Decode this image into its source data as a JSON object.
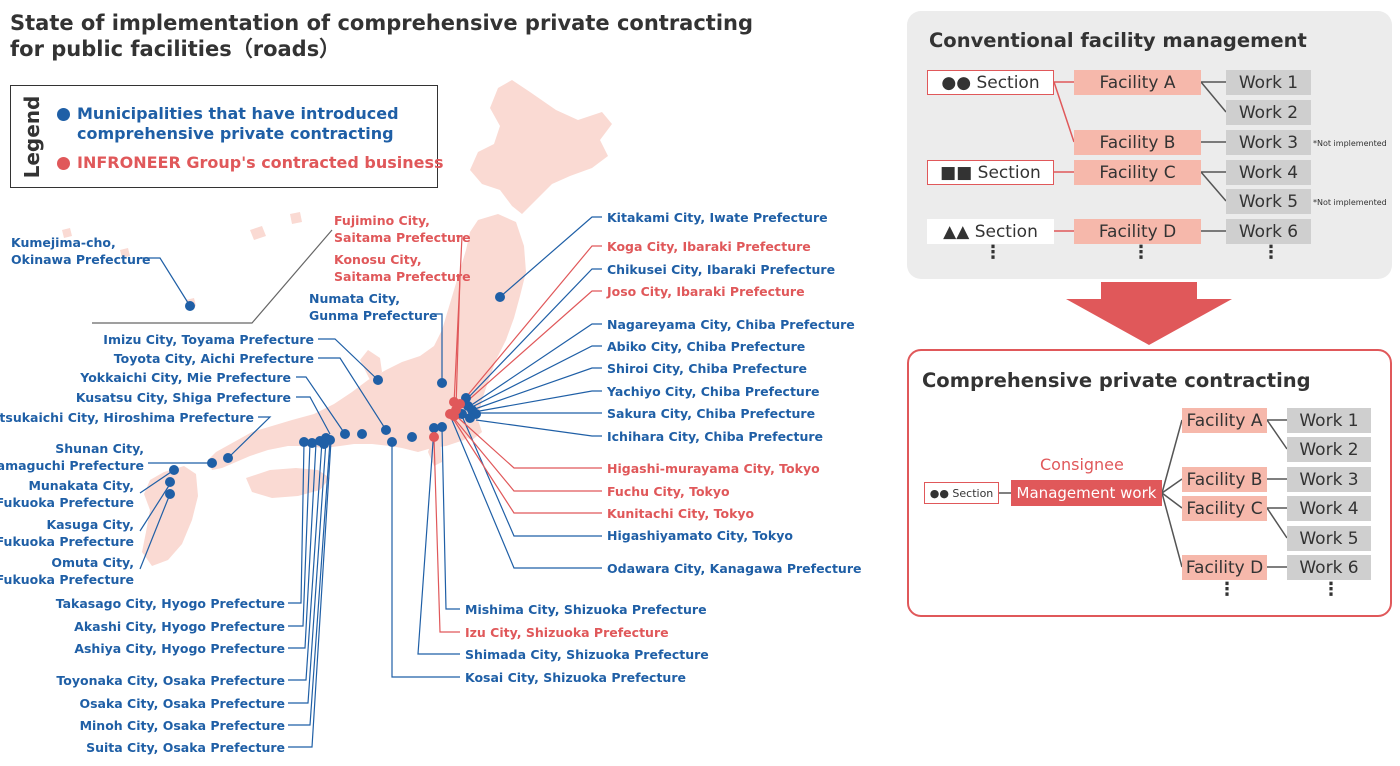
{
  "title": {
    "line1": "State of implementation of comprehensive private contracting",
    "line2": "for public facilities（roads）"
  },
  "colors": {
    "blue": "#1f5fa6",
    "red": "#e0585a",
    "land": "#fadad3"
  },
  "legend": {
    "heading": "Legend",
    "blue_line1": "Municipalities that have introduced",
    "blue_line2": "comprehensive private contracting",
    "red_line1": "INFRONEER Group's contracted business"
  },
  "labels": {
    "kumejima": [
      "Kumejima-cho,",
      "Okinawa Prefecture"
    ],
    "fujimino": [
      "Fujimino City,",
      "Saitama Prefecture"
    ],
    "konosu": [
      "Konosu City,",
      "Saitama Prefecture"
    ],
    "numata": [
      "Numata City,",
      "Gunma Prefecture"
    ],
    "imizu": "Imizu City, Toyama Prefecture",
    "toyota": "Toyota City, Aichi Prefecture",
    "yokkaichi": "Yokkaichi City, Mie Prefecture",
    "kusatsu": "Kusatsu City, Shiga Prefecture",
    "hatsukaichi": "Hatsukaichi City, Hiroshima Prefecture",
    "shunan": [
      "Shunan City,",
      "Yamaguchi Prefecture"
    ],
    "munakata": [
      "Munakata City,",
      "Fukuoka Prefecture"
    ],
    "kasuga": [
      "Kasuga City,",
      "Fukuoka Prefecture"
    ],
    "omuta": [
      "Omuta City,",
      "Fukuoka Prefecture"
    ],
    "takasago": "Takasago City, Hyogo Prefecture",
    "akashi": "Akashi City, Hyogo Prefecture",
    "ashiya": "Ashiya City, Hyogo Prefecture",
    "toyonaka": "Toyonaka City, Osaka Prefecture",
    "osaka": "Osaka City, Osaka Prefecture",
    "minoh": "Minoh City, Osaka Prefecture",
    "suita": "Suita City, Osaka Prefecture",
    "kitakami": "Kitakami City, Iwate Prefecture",
    "koga": "Koga City, Ibaraki Prefecture",
    "chikusei": "Chikusei City, Ibaraki Prefecture",
    "joso": "Joso City, Ibaraki Prefecture",
    "nagareyama": "Nagareyama City, Chiba Prefecture",
    "abiko": "Abiko City, Chiba Prefecture",
    "shiroi": "Shiroi City, Chiba Prefecture",
    "yachiyo": "Yachiyo City, Chiba Prefecture",
    "sakura": "Sakura City, Chiba Prefecture",
    "ichihara": "Ichihara City, Chiba Prefecture",
    "higashimurayama": "Higashi-murayama City, Tokyo",
    "fuchu": "Fuchu City, Tokyo",
    "kunitachi": "Kunitachi City, Tokyo",
    "higashiyamato": "Higashiyamato City, Tokyo",
    "odawara": "Odawara City, Kanagawa Prefecture",
    "mishima": "Mishima City, Shizuoka Prefecture",
    "izu": "Izu City, Shizuoka Prefecture",
    "shimada": "Shimada City, Shizuoka Prefecture",
    "kosai": "Kosai City, Shizuoka Prefecture"
  },
  "conventional": {
    "title": "Conventional facility management",
    "sections": [
      "●● Section",
      "■■ Section",
      "▲▲ Section"
    ],
    "facilities": [
      "Facility A",
      "Facility B",
      "Facility C",
      "Facility D"
    ],
    "works": [
      "Work 1",
      "Work 2",
      "Work 3",
      "Work 4",
      "Work 5",
      "Work 6"
    ],
    "note": "*Not implemented"
  },
  "comprehensive": {
    "title": "Comprehensive private contracting",
    "section": "●● Section",
    "consignee": "Consignee",
    "management": "Management work",
    "facilities": [
      "Facility A",
      "Facility B",
      "Facility C",
      "Facility D"
    ],
    "works": [
      "Work 1",
      "Work 2",
      "Work 3",
      "Work 4",
      "Work 5",
      "Work 6"
    ]
  }
}
